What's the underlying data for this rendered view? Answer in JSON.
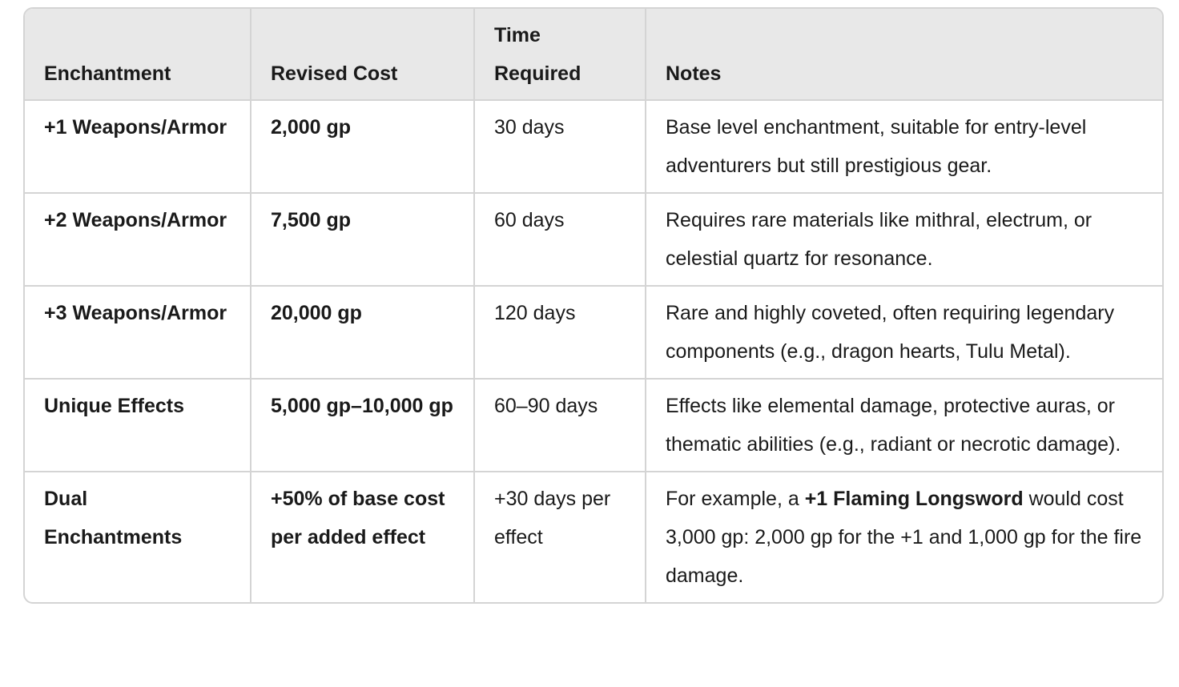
{
  "table": {
    "header": [
      "Enchantment",
      "Revised Cost",
      "Time Required",
      "Notes"
    ],
    "rows": [
      [
        "+1 Weapons/Armor",
        "2,000 gp",
        "30 days",
        "Base level enchantment, suitable for entry-level adventurers but still prestigious gear."
      ],
      [
        "+2 Weapons/Armor",
        "7,500 gp",
        "60 days",
        "Requires rare materials like mithral, electrum, or celestial quartz for resonance."
      ],
      [
        "+3 Weapons/Armor",
        "20,000 gp",
        "120 days",
        "Rare and highly coveted, often requiring legendary components (e.g., dragon hearts, Tulu Metal)."
      ],
      [
        "Unique Effects",
        "5,000 gp–10,000 gp",
        "60–90 days",
        "Effects like elemental damage, protective auras, or thematic abilities (e.g., radiant or necrotic damage)."
      ],
      [
        "Dual Enchantments",
        "+50% of base cost per added effect",
        "+30 days per effect",
        [
          {
            "text": "For example, a ",
            "bold": false
          },
          {
            "text": "+1 Flaming Longsword",
            "bold": true
          },
          {
            "text": " would cost 3,000 gp: 2,000 gp for the +1 and 1,000 gp for the fire damage.",
            "bold": false
          }
        ]
      ]
    ],
    "bold_columns": [
      0,
      1
    ]
  }
}
